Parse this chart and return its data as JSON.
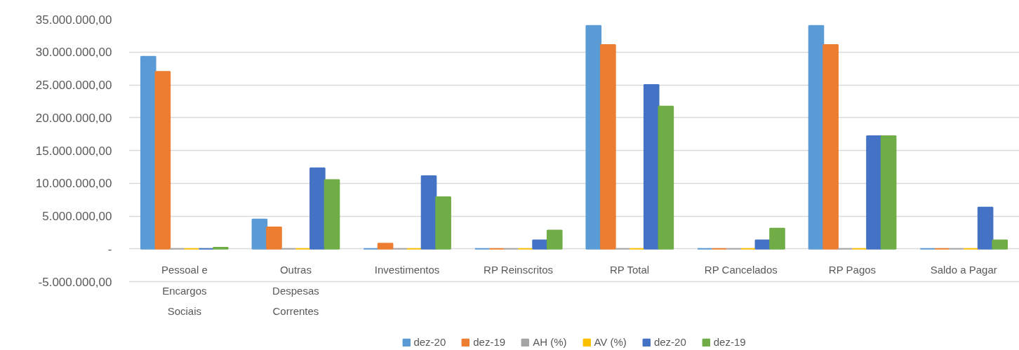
{
  "chart_data": {
    "type": "bar",
    "categories": [
      "Pessoal e Encargos Sociais",
      "Outras Despesas Correntes",
      "Investimentos",
      "RP Reinscritos",
      "RP Total",
      "RP Cancelados",
      "RP Pagos",
      "Saldo a Pagar"
    ],
    "series": [
      {
        "name": "dez-20",
        "color": "#5b9bd5",
        "values": [
          29300000,
          4500000,
          0,
          0,
          34000000,
          0,
          34000000,
          0
        ]
      },
      {
        "name": "dez-19",
        "color": "#ed7d31",
        "values": [
          27000000,
          3300000,
          800000,
          0,
          31100000,
          0,
          31100000,
          0
        ]
      },
      {
        "name": "AH (%)",
        "color": "#a5a5a5",
        "values": [
          0,
          0,
          0,
          0,
          0,
          0,
          0,
          0
        ]
      },
      {
        "name": "AV (%)",
        "color": "#ffc000",
        "values": [
          0,
          0,
          0,
          0,
          0,
          0,
          0,
          0
        ]
      },
      {
        "name": "dez-20",
        "color": "#4472c4",
        "values": [
          0,
          12300000,
          11100000,
          1300000,
          25000000,
          1300000,
          17200000,
          6300000
        ]
      },
      {
        "name": "dez-19",
        "color": "#70ad47",
        "values": [
          200000,
          10500000,
          7900000,
          2800000,
          21700000,
          3100000,
          17200000,
          1300000
        ]
      }
    ],
    "ylim": [
      -5000000,
      35000000
    ],
    "yticks": [
      {
        "value": -5000000,
        "label": "-5.000.000,00"
      },
      {
        "value": 0,
        "label": "-"
      },
      {
        "value": 5000000,
        "label": "5.000.000,00"
      },
      {
        "value": 10000000,
        "label": "10.000.000,00"
      },
      {
        "value": 15000000,
        "label": "15.000.000,00"
      },
      {
        "value": 20000000,
        "label": "20.000.000,00"
      },
      {
        "value": 25000000,
        "label": "25.000.000,00"
      },
      {
        "value": 30000000,
        "label": "30.000.000,00"
      },
      {
        "value": 35000000,
        "label": "35.000.000,00"
      }
    ],
    "grid": "y",
    "legend": "bottom"
  }
}
